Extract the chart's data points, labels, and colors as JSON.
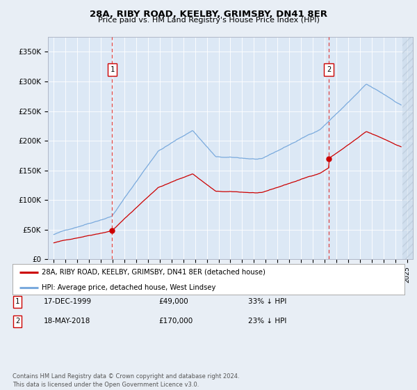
{
  "title": "28A, RIBY ROAD, KEELBY, GRIMSBY, DN41 8ER",
  "subtitle": "Price paid vs. HM Land Registry's House Price Index (HPI)",
  "background_color": "#e8eef5",
  "plot_bg": "#dce8f5",
  "ylim": [
    0,
    375000
  ],
  "yticks": [
    0,
    50000,
    100000,
    150000,
    200000,
    250000,
    300000,
    350000
  ],
  "ytick_labels": [
    "£0",
    "£50K",
    "£100K",
    "£150K",
    "£200K",
    "£250K",
    "£300K",
    "£350K"
  ],
  "sale1_x": 1999.96,
  "sale1_y": 49000,
  "sale2_x": 2018.37,
  "sale2_y": 170000,
  "legend_entries": [
    {
      "label": "28A, RIBY ROAD, KEELBY, GRIMSBY, DN41 8ER (detached house)",
      "color": "#cc0000"
    },
    {
      "label": "HPI: Average price, detached house, West Lindsey",
      "color": "#7aaadd"
    }
  ],
  "table_rows": [
    {
      "num": "1",
      "date": "17-DEC-1999",
      "price": "£49,000",
      "hpi": "33% ↓ HPI"
    },
    {
      "num": "2",
      "date": "18-MAY-2018",
      "price": "£170,000",
      "hpi": "23% ↓ HPI"
    }
  ],
  "footnote": "Contains HM Land Registry data © Crown copyright and database right 2024.\nThis data is licensed under the Open Government Licence v3.0.",
  "xlim_left": 1994.5,
  "xlim_right": 2025.5,
  "hatch_start": 2024.6
}
